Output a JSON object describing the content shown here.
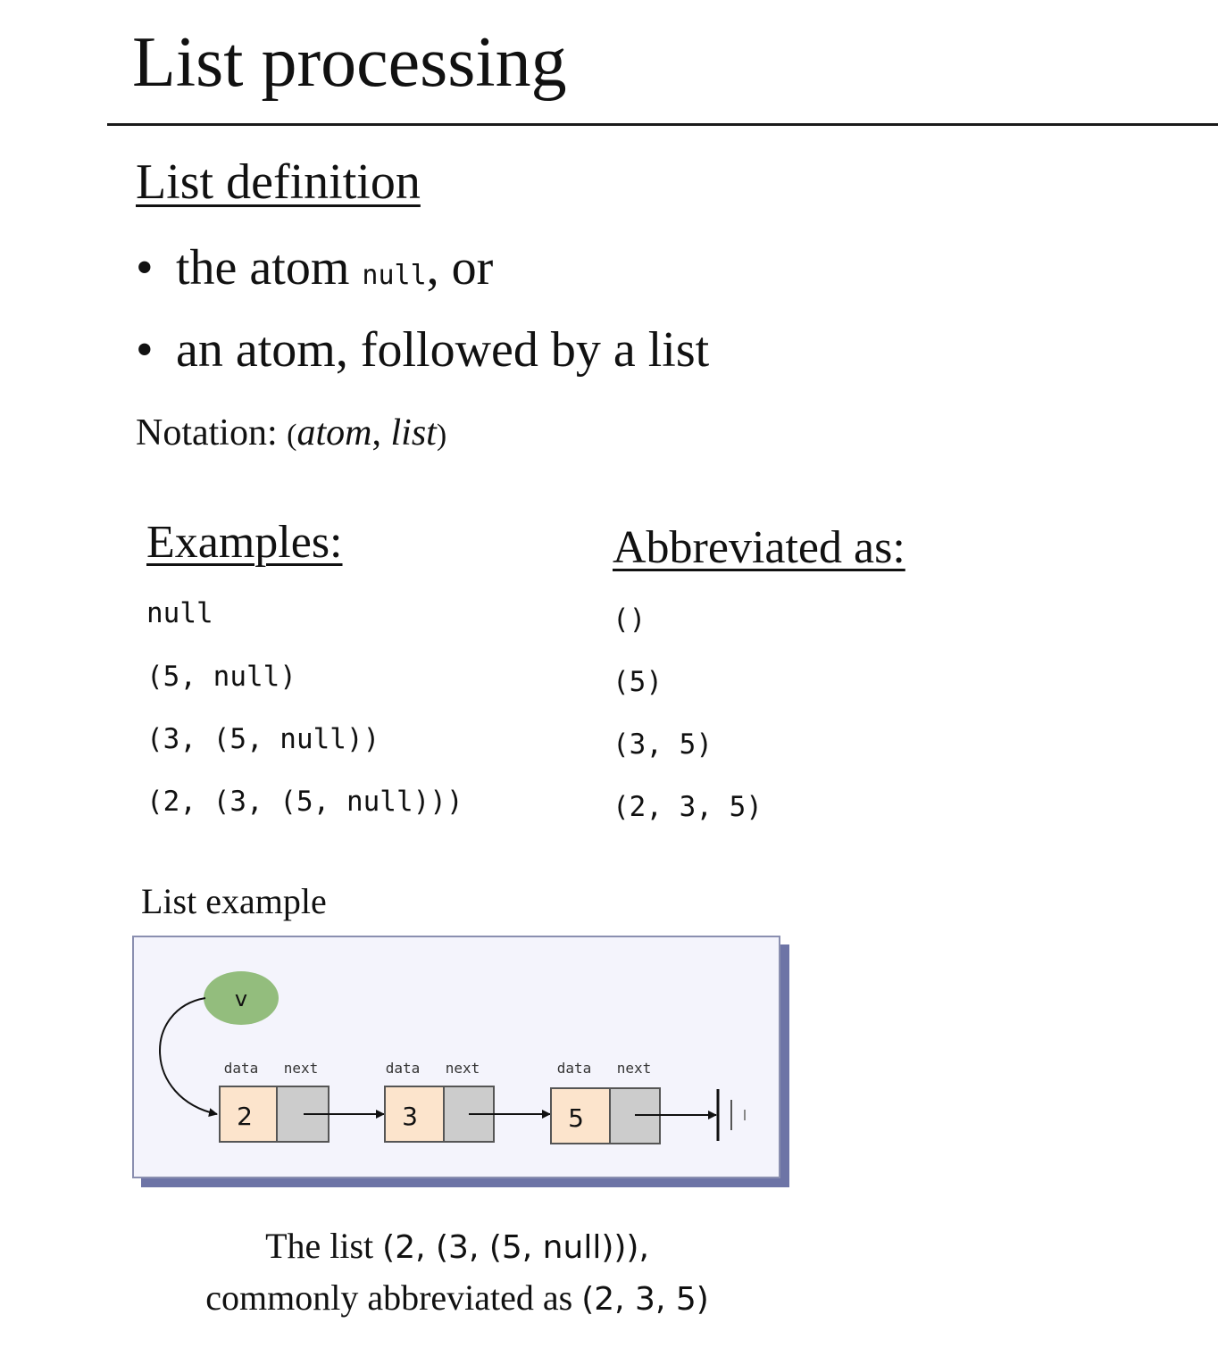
{
  "title": "List processing",
  "definition": {
    "heading": "List definition",
    "bullets": [
      {
        "bullet": "•",
        "before": "the atom ",
        "code": "null",
        "after": ", or"
      },
      {
        "bullet": "•",
        "before": "an atom, followed by a list",
        "code": "",
        "after": ""
      }
    ],
    "notation": {
      "label": "Notation: ",
      "open": "(",
      "atom": "atom",
      "comma": ", ",
      "list": "list",
      "close": ")"
    }
  },
  "examples": {
    "heading": "Examples:",
    "rows": [
      "null",
      "(5, null)",
      "(3, (5, null))",
      "(2, (3, (5, null)))"
    ]
  },
  "abbreviated": {
    "heading": "Abbreviated as:",
    "rows": [
      "()",
      "(5)",
      "(3, 5)",
      "(2, 3, 5)"
    ]
  },
  "list_example": {
    "label": "List example",
    "pointer_label": "v",
    "field_labels": {
      "data": "data",
      "next": "next"
    },
    "nodes": [
      {
        "data": "2"
      },
      {
        "data": "3"
      },
      {
        "data": "5"
      }
    ],
    "colors": {
      "data_cell": "#fce4cc",
      "next_cell": "#cccccc",
      "pointer_node": "#93bd7d",
      "panel_bg": "#f4f4fc",
      "panel_shadow": "#6d74a6"
    }
  },
  "caption": {
    "line1_text": "The list ",
    "line1_value": "(2, (3, (5, null))),",
    "line2_text": "commonly abbreviated as ",
    "line2_value": "(2, 3, 5)"
  }
}
